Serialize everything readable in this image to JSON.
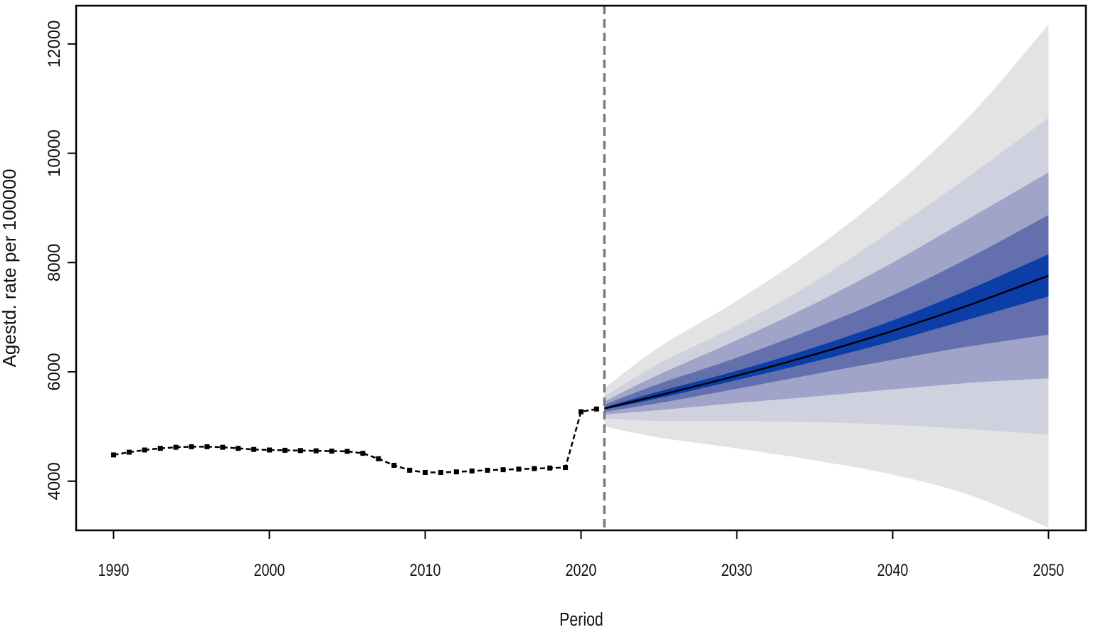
{
  "chart_data": {
    "type": "line",
    "title": "",
    "xlabel": "Period",
    "ylabel": "Agestd. rate per 100000",
    "xlim": [
      1987.6,
      2052.4
    ],
    "ylim": [
      3100,
      12700
    ],
    "x_ticks": [
      1990,
      2000,
      2010,
      2020,
      2030,
      2040,
      2050
    ],
    "y_ticks": [
      4000,
      6000,
      8000,
      10000,
      12000
    ],
    "grid": false,
    "legend": "none",
    "forecast_start": 2021.5,
    "colors": {
      "observed": "#000000",
      "forecast": "#000000",
      "divider": "#7a7a7a",
      "band_outer": "#e3e3e3",
      "band_2": "#cfd2de",
      "band_3": "#a0a4c8",
      "band_4": "#6470ae",
      "band_inner": "#0c3ea8"
    },
    "series": [
      {
        "x": [
          1990,
          1991,
          1992,
          1993,
          1994,
          1995,
          1996,
          1997,
          1998,
          1999,
          2000,
          2001,
          2002,
          2003,
          2004,
          2005,
          2006,
          2007,
          2008,
          2009,
          2010,
          2011,
          2012,
          2013,
          2014,
          2015,
          2016,
          2017,
          2018,
          2019,
          2020,
          2021
        ],
        "y": [
          4480,
          4530,
          4570,
          4600,
          4620,
          4630,
          4630,
          4620,
          4600,
          4580,
          4570,
          4565,
          4560,
          4555,
          4550,
          4545,
          4510,
          4410,
          4290,
          4200,
          4160,
          4160,
          4170,
          4185,
          4200,
          4210,
          4220,
          4230,
          4240,
          4250,
          5270,
          5320
        ]
      },
      {
        "x": [
          2021.5,
          2025,
          2030,
          2035,
          2040,
          2045,
          2050
        ],
        "y": [
          5330,
          5570,
          5930,
          6320,
          6750,
          7230,
          7760
        ]
      }
    ],
    "bands": [
      {
        "x": [
          2021.5,
          2025,
          2030,
          2035,
          2040,
          2045,
          2050
        ],
        "lower": [
          5000,
          4800,
          4600,
          4380,
          4120,
          3740,
          3150
        ],
        "upper": [
          5700,
          6450,
          7300,
          8250,
          9370,
          10700,
          12350
        ]
      },
      {
        "x": [
          2021.5,
          2025,
          2030,
          2035,
          2040,
          2045,
          2050
        ],
        "lower": [
          5150,
          5100,
          5100,
          5080,
          5030,
          4950,
          4850
        ],
        "upper": [
          5550,
          6150,
          6850,
          7650,
          8600,
          9600,
          10650
        ]
      },
      {
        "x": [
          2021.5,
          2025,
          2030,
          2035,
          2040,
          2045,
          2050
        ],
        "lower": [
          5220,
          5300,
          5430,
          5550,
          5680,
          5800,
          5880
        ],
        "upper": [
          5460,
          5950,
          6580,
          7250,
          8000,
          8820,
          9650
        ]
      },
      {
        "x": [
          2021.5,
          2025,
          2030,
          2035,
          2040,
          2045,
          2050
        ],
        "lower": [
          5270,
          5430,
          5690,
          5960,
          6220,
          6470,
          6680
        ],
        "upper": [
          5400,
          5780,
          6260,
          6800,
          7400,
          8100,
          8870
        ]
      },
      {
        "x": [
          2021.5,
          2025,
          2030,
          2035,
          2040,
          2045,
          2050
        ],
        "lower": [
          5310,
          5520,
          5850,
          6190,
          6560,
          6970,
          7380
        ],
        "upper": [
          5350,
          5640,
          6020,
          6450,
          6940,
          7520,
          8150
        ]
      }
    ]
  }
}
